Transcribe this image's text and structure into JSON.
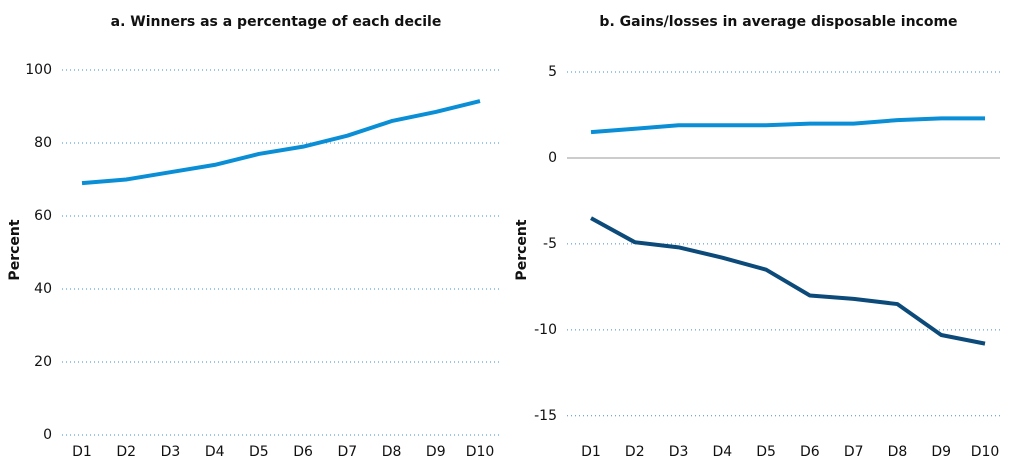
{
  "chart_data": [
    {
      "type": "line",
      "title": "a. Winners as a percentage of each decile",
      "y_label": "Percent",
      "categories": [
        "D1",
        "D2",
        "D3",
        "D4",
        "D5",
        "D6",
        "D7",
        "D8",
        "D9",
        "D10"
      ],
      "series": [
        {
          "color": "#0a8fd6",
          "values": [
            69,
            70,
            72,
            74,
            77,
            79,
            82,
            86,
            88.5,
            91.5
          ]
        }
      ],
      "ylim": [
        0,
        100
      ],
      "yticks": [
        0,
        20,
        40,
        60,
        80,
        100
      ],
      "grid": true
    },
    {
      "type": "line",
      "title": "b. Gains/losses in average disposable income",
      "y_label": "Percent",
      "categories": [
        "D1",
        "D2",
        "D3",
        "D4",
        "D5",
        "D6",
        "D7",
        "D8",
        "D9",
        "D10"
      ],
      "series": [
        {
          "color": "#0a8fd6",
          "values": [
            1.5,
            1.7,
            1.9,
            1.9,
            1.9,
            2.0,
            2.0,
            2.2,
            2.3,
            2.3
          ]
        },
        {
          "color": "#0c4a7a",
          "values": [
            -3.5,
            -4.9,
            -5.2,
            -5.8,
            -6.5,
            -8.0,
            -8.2,
            -8.5,
            -10.3,
            -10.8
          ]
        }
      ],
      "ylim": [
        -16,
        5
      ],
      "yticks": [
        -15,
        -10,
        -5,
        0,
        5
      ],
      "grid": true,
      "zero_line": true
    }
  ]
}
